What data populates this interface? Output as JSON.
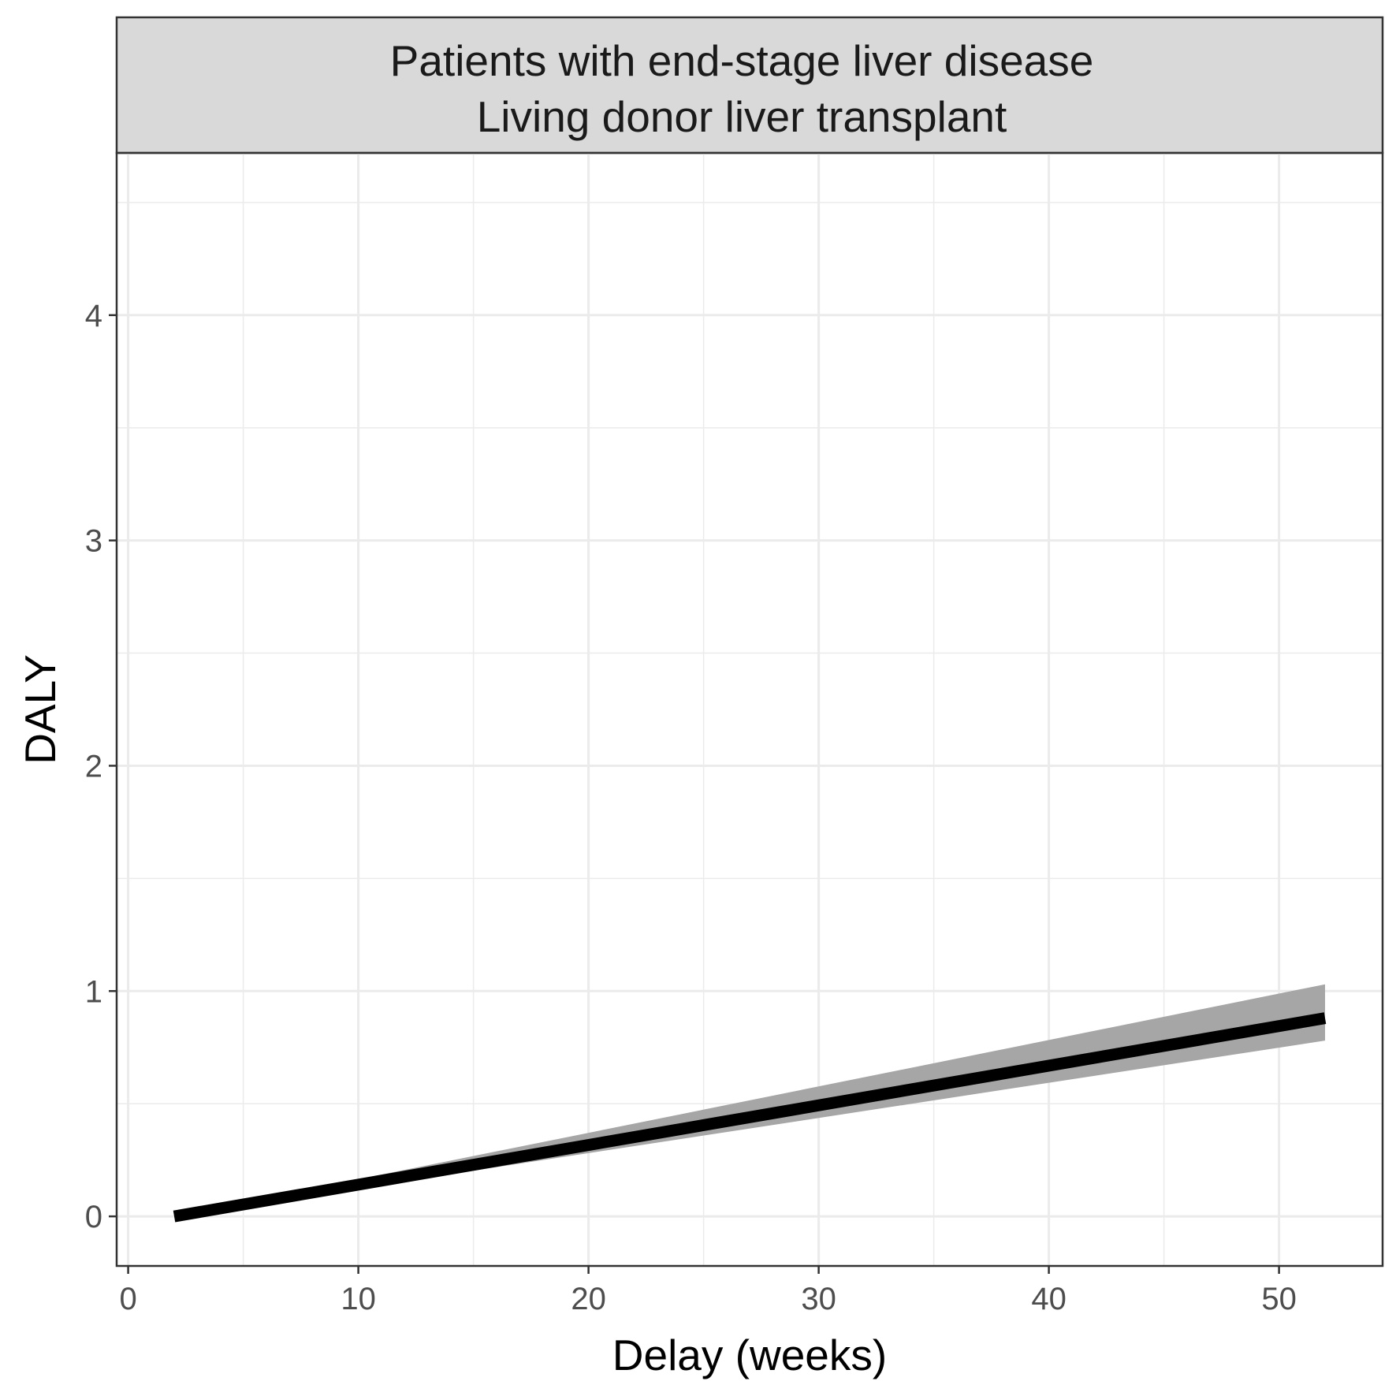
{
  "chart_data": {
    "type": "line",
    "strip_title_lines": [
      "Patients with end-stage liver disease",
      "Living donor liver transplant"
    ],
    "xlabel": "Delay (weeks)",
    "ylabel": "DALY",
    "xlim": [
      -0.5,
      54.5
    ],
    "ylim": [
      -0.22,
      4.72
    ],
    "x_ticks": [
      0,
      10,
      20,
      30,
      40,
      50
    ],
    "y_ticks": [
      0,
      1,
      2,
      3,
      4
    ],
    "x_minor": [
      5,
      15,
      25,
      35,
      45
    ],
    "y_minor": [
      0.5,
      1.5,
      2.5,
      3.5,
      4.5
    ],
    "grid": true,
    "series": [
      {
        "x": [
          2,
          52
        ],
        "values": [
          0.0,
          0.88
        ],
        "ci_lower": [
          0.0,
          0.78
        ],
        "ci_upper": [
          0.0,
          1.03
        ],
        "color": "#000000",
        "ribbon_color": "#a6a6a6"
      }
    ]
  }
}
